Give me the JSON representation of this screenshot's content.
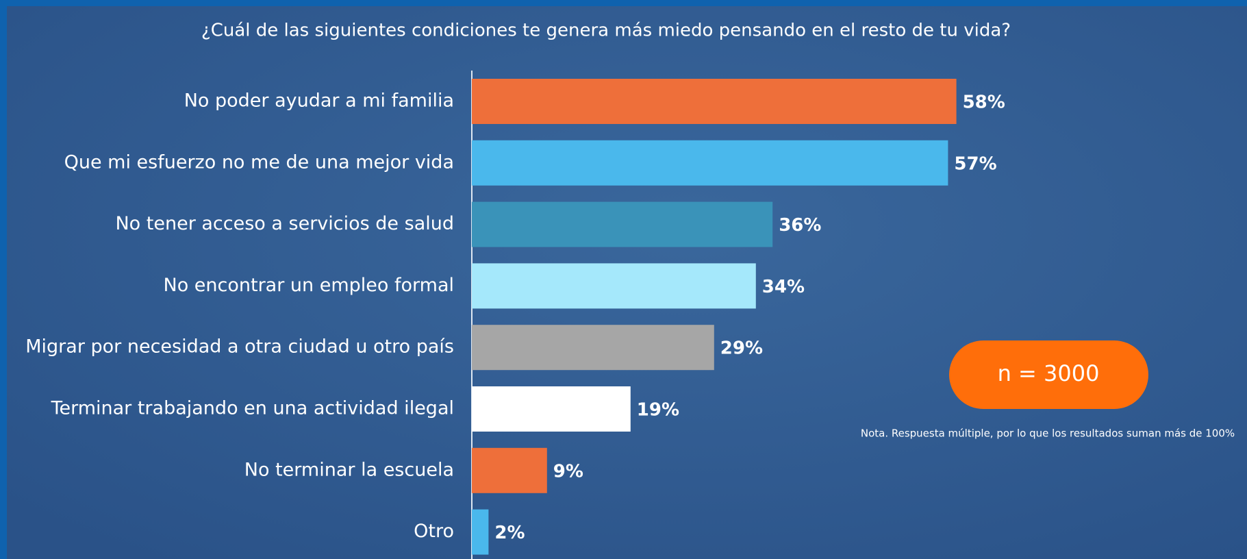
{
  "chart_data": {
    "type": "bar",
    "orientation": "horizontal",
    "title": "¿Cuál de las siguientes condiciones te genera más miedo pensando en el resto de tu vida?",
    "categories": [
      "No poder ayudar a mi familia",
      "Que mi esfuerzo no me de una mejor vida",
      "No tener acceso a servicios de salud",
      "No encontrar un empleo formal",
      "Migrar por necesidad a otra ciudad u otro país",
      "Terminar trabajando en una actividad ilegal",
      "No terminar la escuela",
      "Otro"
    ],
    "values": [
      58,
      57,
      36,
      34,
      29,
      19,
      9,
      2
    ],
    "value_labels": [
      "58%",
      "57%",
      "36%",
      "34%",
      "29%",
      "19%",
      "9%",
      "2%"
    ],
    "colors": [
      "#ee6f3a",
      "#4ab8ec",
      "#3a93b9",
      "#a5e8fb",
      "#a6a6a6",
      "#ffffff",
      "#ee6f3a",
      "#4ab8ec"
    ],
    "annotations": {
      "sample": "n = 3000",
      "note": "Nota. Respuesta múltiple, por lo que los resultados suman más de 100%"
    }
  }
}
